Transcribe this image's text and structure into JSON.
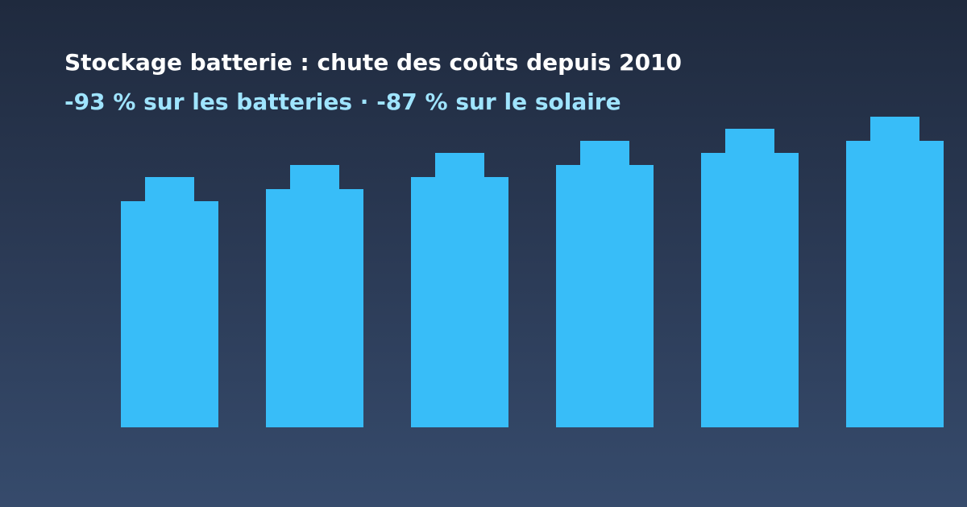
{
  "header": {
    "title": "Stockage batterie : chute des coûts depuis 2010",
    "subtitle": "-93 % sur les batteries · -87 % sur le solaire"
  },
  "colors": {
    "background_top": "#1f2a3e",
    "background_bottom": "#364b6c",
    "title": "#ffffff",
    "subtitle": "#9fe4ff",
    "accent": "#38bdf8"
  },
  "illustration": {
    "type": "batteries",
    "count": 6
  }
}
